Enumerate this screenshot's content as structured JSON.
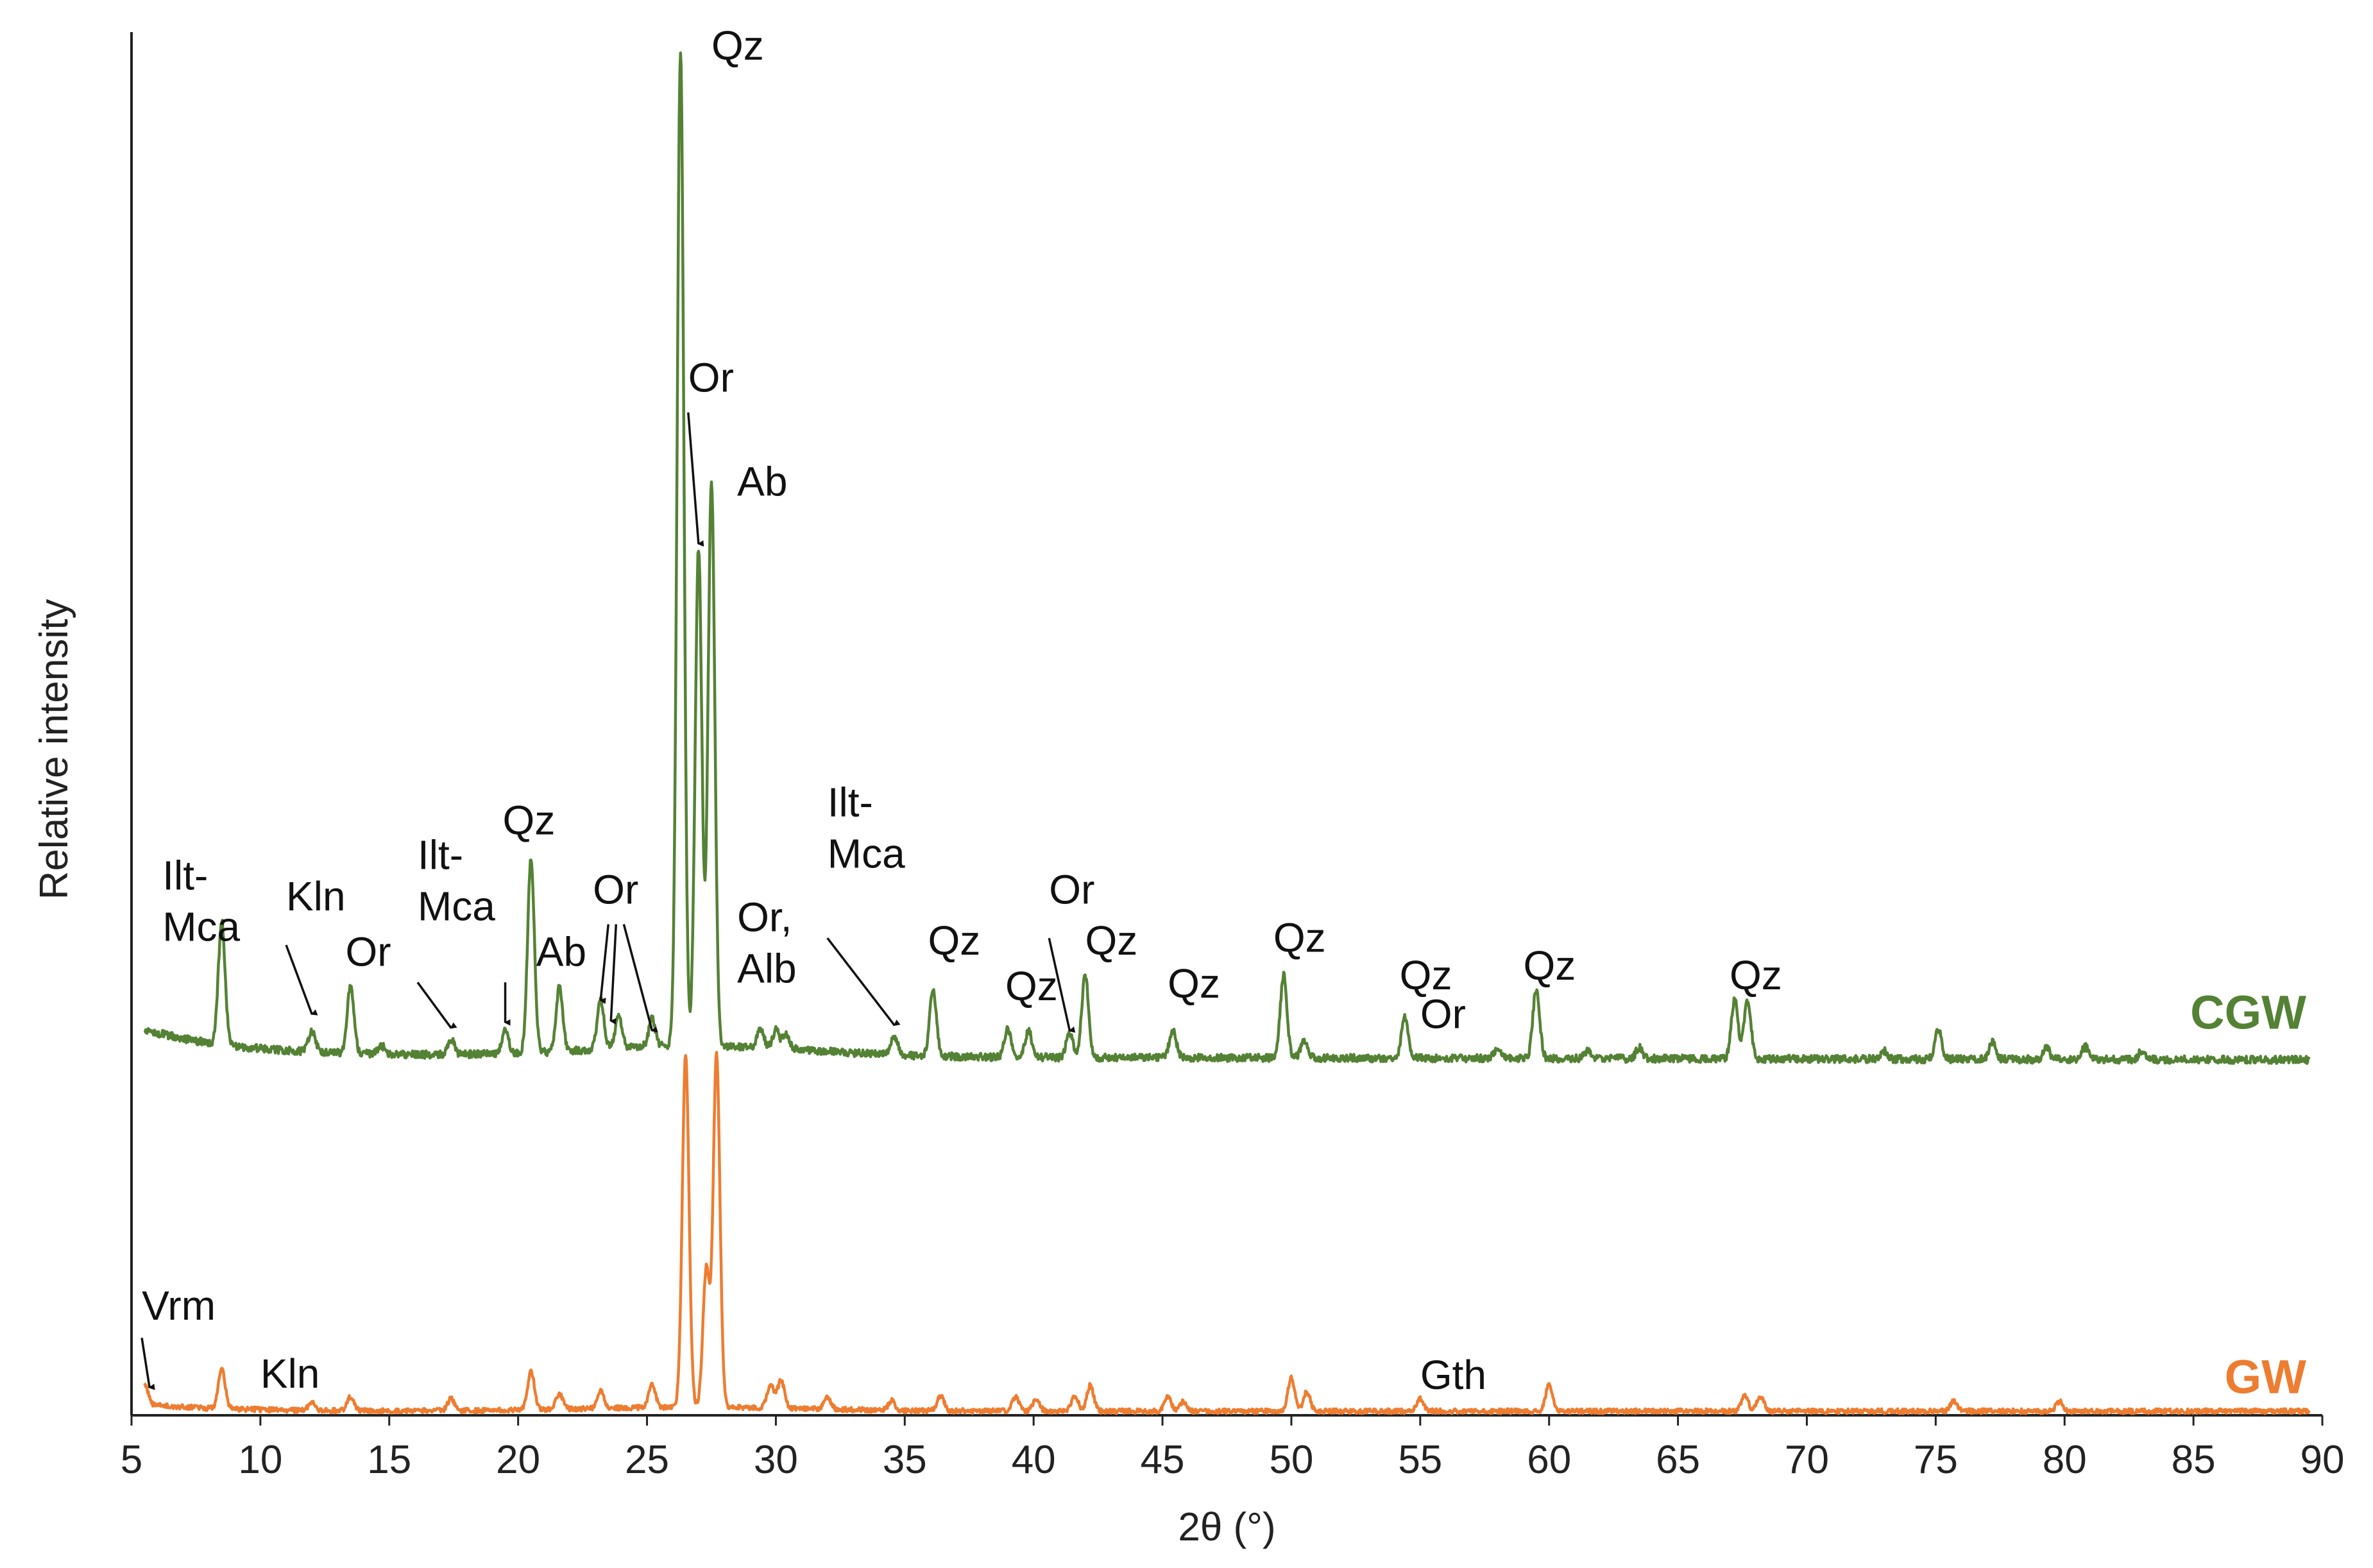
{
  "chart_data": {
    "type": "line",
    "xlabel": "2θ (°)",
    "ylabel": "Relative intensity",
    "xlim": [
      5,
      90
    ],
    "ylim": [
      0,
      100
    ],
    "x_ticks": [
      5,
      10,
      15,
      20,
      25,
      30,
      35,
      40,
      45,
      50,
      55,
      60,
      65,
      70,
      75,
      80,
      85,
      90
    ],
    "grid": false,
    "legend": "series names printed at right end of each trace",
    "series": [
      {
        "name": "CGW",
        "color": "#548235",
        "baseline": 26,
        "peaks": [
          {
            "x": 8.5,
            "y": 8.9
          },
          {
            "x": 12.0,
            "y": 1.5
          },
          {
            "x": 13.5,
            "y": 5.0
          },
          {
            "x": 14.7,
            "y": 0.6
          },
          {
            "x": 17.4,
            "y": 1.1
          },
          {
            "x": 19.5,
            "y": 1.6
          },
          {
            "x": 20.5,
            "y": 14.1
          },
          {
            "x": 21.6,
            "y": 4.6
          },
          {
            "x": 23.2,
            "y": 3.5
          },
          {
            "x": 23.9,
            "y": 2.3
          },
          {
            "x": 25.2,
            "y": 2.0
          },
          {
            "x": 26.3,
            "y": 72.0
          },
          {
            "x": 27.0,
            "y": 36.0
          },
          {
            "x": 27.5,
            "y": 41.0
          },
          {
            "x": 29.4,
            "y": 1.4
          },
          {
            "x": 30.0,
            "y": 1.3
          },
          {
            "x": 30.4,
            "y": 1.0
          },
          {
            "x": 34.6,
            "y": 1.3
          },
          {
            "x": 36.1,
            "y": 4.8
          },
          {
            "x": 39.0,
            "y": 2.0
          },
          {
            "x": 39.8,
            "y": 1.9
          },
          {
            "x": 41.4,
            "y": 1.8
          },
          {
            "x": 42.0,
            "y": 6.0
          },
          {
            "x": 45.4,
            "y": 2.0
          },
          {
            "x": 49.7,
            "y": 6.0
          },
          {
            "x": 50.5,
            "y": 1.2
          },
          {
            "x": 54.4,
            "y": 2.9
          },
          {
            "x": 58.0,
            "y": 0.7
          },
          {
            "x": 59.5,
            "y": 5.0
          },
          {
            "x": 61.5,
            "y": 0.6
          },
          {
            "x": 63.5,
            "y": 0.8
          },
          {
            "x": 67.2,
            "y": 4.3
          },
          {
            "x": 67.7,
            "y": 4.3
          },
          {
            "x": 73.0,
            "y": 0.6
          },
          {
            "x": 75.1,
            "y": 2.2
          },
          {
            "x": 77.2,
            "y": 1.3
          },
          {
            "x": 79.3,
            "y": 0.8
          },
          {
            "x": 80.8,
            "y": 0.9
          },
          {
            "x": 83.0,
            "y": 0.6
          }
        ]
      },
      {
        "name": "GW",
        "color": "#ED7D31",
        "baseline": 0.3,
        "peaks": [
          {
            "x": 5.5,
            "y": 1.5
          },
          {
            "x": 8.5,
            "y": 3.0
          },
          {
            "x": 12.0,
            "y": 0.6
          },
          {
            "x": 13.5,
            "y": 1.0
          },
          {
            "x": 17.4,
            "y": 0.9
          },
          {
            "x": 20.5,
            "y": 2.8
          },
          {
            "x": 21.6,
            "y": 1.1
          },
          {
            "x": 23.2,
            "y": 1.3
          },
          {
            "x": 25.2,
            "y": 1.6
          },
          {
            "x": 26.5,
            "y": 25.5
          },
          {
            "x": 27.3,
            "y": 10.0
          },
          {
            "x": 27.7,
            "y": 25.5
          },
          {
            "x": 29.8,
            "y": 1.7
          },
          {
            "x": 30.2,
            "y": 2.0
          },
          {
            "x": 32.0,
            "y": 0.8
          },
          {
            "x": 34.5,
            "y": 0.7
          },
          {
            "x": 36.4,
            "y": 1.1
          },
          {
            "x": 39.3,
            "y": 1.0
          },
          {
            "x": 40.1,
            "y": 0.9
          },
          {
            "x": 41.6,
            "y": 1.1
          },
          {
            "x": 42.2,
            "y": 1.9
          },
          {
            "x": 45.2,
            "y": 1.1
          },
          {
            "x": 45.8,
            "y": 0.7
          },
          {
            "x": 50.0,
            "y": 2.4
          },
          {
            "x": 50.6,
            "y": 1.4
          },
          {
            "x": 55.0,
            "y": 0.9
          },
          {
            "x": 60.0,
            "y": 2.0
          },
          {
            "x": 67.6,
            "y": 1.1
          },
          {
            "x": 68.2,
            "y": 1.1
          },
          {
            "x": 75.7,
            "y": 0.7
          },
          {
            "x": 79.8,
            "y": 0.7
          }
        ]
      }
    ],
    "annotations": [
      {
        "text": [
          "Qz"
        ],
        "x": 27.5,
        "y": 98,
        "arrow": null
      },
      {
        "text": [
          "Or"
        ],
        "x": 26.6,
        "y": 74,
        "arrow": {
          "x": 27.0,
          "y_from": 72.5,
          "y_to": 63
        }
      },
      {
        "text": [
          "Ab"
        ],
        "x": 28.5,
        "y": 66.5,
        "arrow": null
      },
      {
        "text": [
          "Ilt-",
          "Mca"
        ],
        "x": 6.2,
        "y": 38,
        "arrow": null
      },
      {
        "text": [
          "Kln"
        ],
        "x": 11.0,
        "y": 36.5,
        "arrow": {
          "x": 12.0,
          "y_from": 34,
          "y_to": 29
        }
      },
      {
        "text": [
          "Or"
        ],
        "x": 13.3,
        "y": 32.5,
        "arrow": null
      },
      {
        "text": [
          "Ilt-",
          "Mca"
        ],
        "x": 16.1,
        "y": 39.5,
        "arrow": {
          "x": 17.4,
          "y_from": 31.3,
          "y_to": 28
        }
      },
      {
        "text": [
          ""
        ],
        "x": 19.5,
        "y": 31.3,
        "arrow": {
          "x": 19.5,
          "y_from": 31.3,
          "y_to": 28.4
        }
      },
      {
        "text": [
          "Qz"
        ],
        "x": 19.4,
        "y": 42,
        "arrow": null
      },
      {
        "text": [
          "Ab"
        ],
        "x": 20.7,
        "y": 32.5,
        "arrow": null
      },
      {
        "text": [
          "Or"
        ],
        "x": 22.9,
        "y": 37.0,
        "arrow": null
      },
      {
        "text": [
          ""
        ],
        "x": 23.5,
        "y": 35.5,
        "arrow": {
          "x": 23.2,
          "y_from": 35.5,
          "y_to": 30
        }
      },
      {
        "text": [
          ""
        ],
        "x": 23.8,
        "y": 35.5,
        "arrow": {
          "x": 23.6,
          "y_from": 35.5,
          "y_to": 28.5
        }
      },
      {
        "text": [
          ""
        ],
        "x": 24.1,
        "y": 35.5,
        "arrow": {
          "x": 25.2,
          "y_from": 35.5,
          "y_to": 27.8
        }
      },
      {
        "text": [
          "Or,",
          "Alb"
        ],
        "x": 28.5,
        "y": 35.0,
        "arrow": null
      },
      {
        "text": [
          "Ilt-",
          "Mca"
        ],
        "x": 32.0,
        "y": 43.3,
        "arrow": {
          "x": 34.6,
          "y_from": 34.5,
          "y_to": 28.2
        }
      },
      {
        "text": [
          "Qz"
        ],
        "x": 35.9,
        "y": 33.3,
        "arrow": null
      },
      {
        "text": [
          "Qz"
        ],
        "x": 38.9,
        "y": 30.0,
        "arrow": null
      },
      {
        "text": [
          "Or"
        ],
        "x": 40.6,
        "y": 37.0,
        "arrow": {
          "x": 41.4,
          "y_from": 34.5,
          "y_to": 27.8
        }
      },
      {
        "text": [
          "Qz"
        ],
        "x": 42.0,
        "y": 33.3,
        "arrow": null
      },
      {
        "text": [
          "Qz"
        ],
        "x": 45.2,
        "y": 30.2,
        "arrow": null
      },
      {
        "text": [
          "Qz"
        ],
        "x": 49.3,
        "y": 33.5,
        "arrow": null
      },
      {
        "text": [
          "Qz"
        ],
        "x": 54.2,
        "y": 30.8,
        "arrow": null
      },
      {
        "text": [
          "Or"
        ],
        "x": 55.0,
        "y": 28.0,
        "arrow": null
      },
      {
        "text": [
          "Qz"
        ],
        "x": 59.0,
        "y": 31.5,
        "arrow": null
      },
      {
        "text": [
          "Qz"
        ],
        "x": 67.0,
        "y": 30.8,
        "arrow": null
      },
      {
        "text": [
          "Vrm"
        ],
        "x": 5.4,
        "y": 6.9,
        "arrow": {
          "x": 5.7,
          "y_from": 5.6,
          "y_to": 2.0
        }
      },
      {
        "text": [
          "Kln"
        ],
        "x": 10.0,
        "y": 2.0,
        "arrow": null
      },
      {
        "text": [
          "Gth"
        ],
        "x": 55.0,
        "y": 1.9,
        "arrow": null
      }
    ]
  }
}
